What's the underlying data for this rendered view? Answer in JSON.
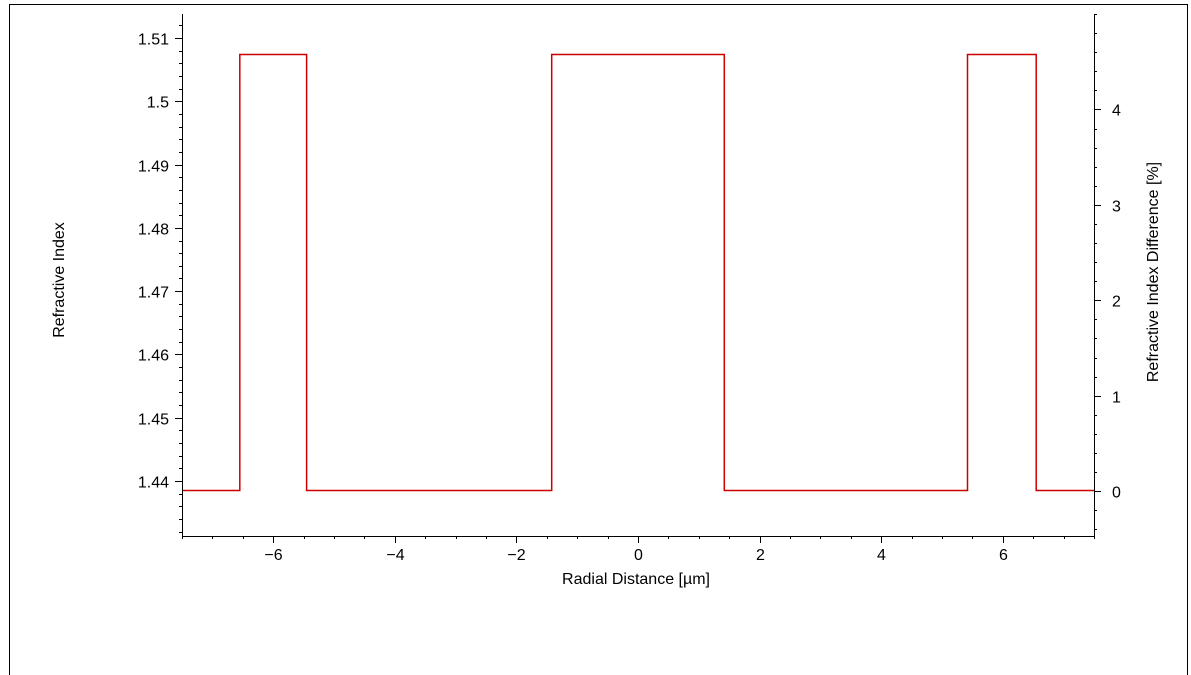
{
  "chart_data": {
    "type": "line",
    "line_shape": "step",
    "xlabel": "Radial Distance [µm]",
    "ylabel": "Refractive Index",
    "y2label": "Refractive Index Difference [%]",
    "xlim": [
      -7.5,
      7.5
    ],
    "ylim": [
      1.4313,
      1.5138
    ],
    "y2lim": [
      -0.47,
      5.0
    ],
    "xticks": [
      -6,
      -4,
      -2,
      0,
      2,
      4,
      6
    ],
    "yticks": [
      1.44,
      1.45,
      1.46,
      1.47,
      1.48,
      1.49,
      1.5,
      1.51
    ],
    "ytick_labels": [
      "1.44",
      "1.45",
      "1.46",
      "1.47",
      "1.48",
      "1.49",
      "1.5",
      "1.51"
    ],
    "y2ticks": [
      0,
      1,
      2,
      3,
      4
    ],
    "grid": false,
    "legend": "none",
    "series": [
      {
        "color": "#cc0000",
        "x": [
          -7.5,
          -6.55,
          -6.55,
          -5.45,
          -5.45,
          -1.42,
          -1.42,
          1.42,
          1.42,
          5.42,
          5.42,
          6.55,
          6.55,
          7.5
        ],
        "y": [
          1.4385,
          1.4385,
          1.5075,
          1.5075,
          1.4385,
          1.4385,
          1.5075,
          1.5075,
          1.4385,
          1.4385,
          1.5075,
          1.5075,
          1.4385,
          1.4385
        ]
      }
    ]
  }
}
